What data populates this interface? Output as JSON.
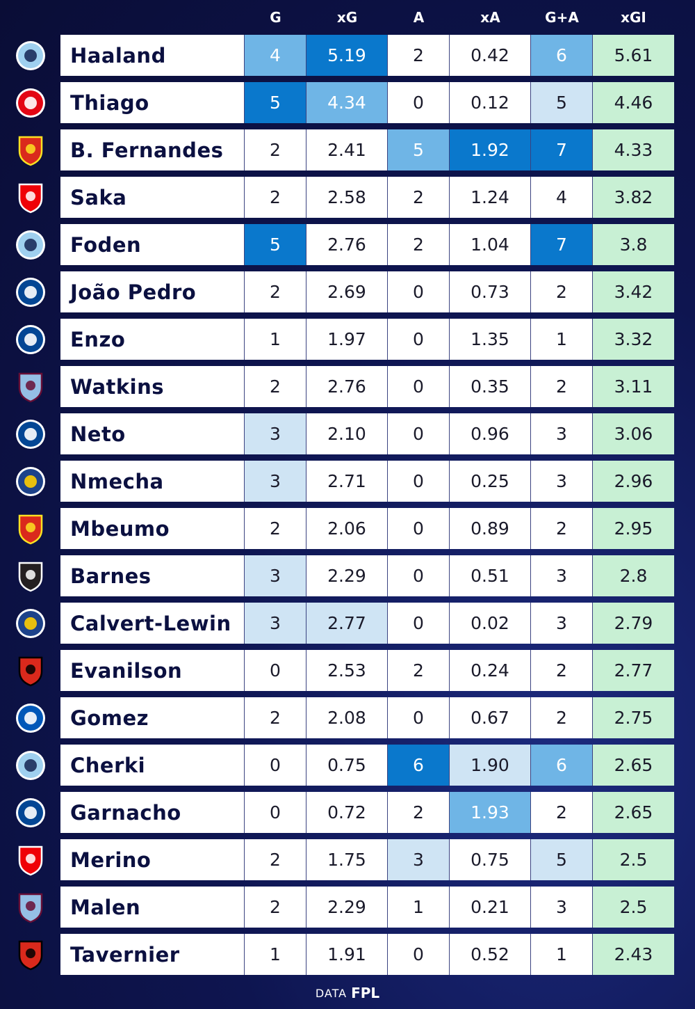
{
  "columns": {
    "g": "G",
    "xg": "xG",
    "a": "A",
    "xa": "xA",
    "ga": "G+A",
    "xgi": "xGI"
  },
  "colors": {
    "white": "#ffffff",
    "light": "#cfe4f4",
    "mid": "#6fb5e6",
    "dark": "#0a78cc",
    "green": "#c8f0d4"
  },
  "players": [
    {
      "name": "Haaland",
      "club_icon": "man-city-crest-icon",
      "g": "4",
      "xg": "5.19",
      "a": "2",
      "xa": "0.42",
      "ga": "6",
      "xgi": "5.61",
      "shade": {
        "g": "mid",
        "xg": "dark",
        "a": "white",
        "xa": "white",
        "ga": "mid"
      }
    },
    {
      "name": "Thiago",
      "club_icon": "brentford-crest-icon",
      "g": "5",
      "xg": "4.34",
      "a": "0",
      "xa": "0.12",
      "ga": "5",
      "xgi": "4.46",
      "shade": {
        "g": "dark",
        "xg": "mid",
        "a": "white",
        "xa": "white",
        "ga": "light"
      }
    },
    {
      "name": "B. Fernandes",
      "club_icon": "man-united-crest-icon",
      "g": "2",
      "xg": "2.41",
      "a": "5",
      "xa": "1.92",
      "ga": "7",
      "xgi": "4.33",
      "shade": {
        "g": "white",
        "xg": "white",
        "a": "mid",
        "xa": "dark",
        "ga": "dark"
      }
    },
    {
      "name": "Saka",
      "club_icon": "arsenal-crest-icon",
      "g": "2",
      "xg": "2.58",
      "a": "2",
      "xa": "1.24",
      "ga": "4",
      "xgi": "3.82",
      "shade": {
        "g": "white",
        "xg": "white",
        "a": "white",
        "xa": "white",
        "ga": "white"
      }
    },
    {
      "name": "Foden",
      "club_icon": "man-city-crest-icon",
      "g": "5",
      "xg": "2.76",
      "a": "2",
      "xa": "1.04",
      "ga": "7",
      "xgi": "3.8",
      "shade": {
        "g": "dark",
        "xg": "white",
        "a": "white",
        "xa": "white",
        "ga": "dark"
      }
    },
    {
      "name": "João Pedro",
      "club_icon": "chelsea-crest-icon",
      "g": "2",
      "xg": "2.69",
      "a": "0",
      "xa": "0.73",
      "ga": "2",
      "xgi": "3.42",
      "shade": {
        "g": "white",
        "xg": "white",
        "a": "white",
        "xa": "white",
        "ga": "white"
      }
    },
    {
      "name": "Enzo",
      "club_icon": "chelsea-crest-icon",
      "g": "1",
      "xg": "1.97",
      "a": "0",
      "xa": "1.35",
      "ga": "1",
      "xgi": "3.32",
      "shade": {
        "g": "white",
        "xg": "white",
        "a": "white",
        "xa": "white",
        "ga": "white"
      }
    },
    {
      "name": "Watkins",
      "club_icon": "aston-villa-crest-icon",
      "g": "2",
      "xg": "2.76",
      "a": "0",
      "xa": "0.35",
      "ga": "2",
      "xgi": "3.11",
      "shade": {
        "g": "white",
        "xg": "white",
        "a": "white",
        "xa": "white",
        "ga": "white"
      }
    },
    {
      "name": "Neto",
      "club_icon": "chelsea-crest-icon",
      "g": "3",
      "xg": "2.10",
      "a": "0",
      "xa": "0.96",
      "ga": "3",
      "xgi": "3.06",
      "shade": {
        "g": "light",
        "xg": "white",
        "a": "white",
        "xa": "white",
        "ga": "white"
      }
    },
    {
      "name": "Nmecha",
      "club_icon": "leeds-crest-icon",
      "g": "3",
      "xg": "2.71",
      "a": "0",
      "xa": "0.25",
      "ga": "3",
      "xgi": "2.96",
      "shade": {
        "g": "light",
        "xg": "white",
        "a": "white",
        "xa": "white",
        "ga": "white"
      }
    },
    {
      "name": "Mbeumo",
      "club_icon": "man-united-crest-icon",
      "g": "2",
      "xg": "2.06",
      "a": "0",
      "xa": "0.89",
      "ga": "2",
      "xgi": "2.95",
      "shade": {
        "g": "white",
        "xg": "white",
        "a": "white",
        "xa": "white",
        "ga": "white"
      }
    },
    {
      "name": "Barnes",
      "club_icon": "newcastle-crest-icon",
      "g": "3",
      "xg": "2.29",
      "a": "0",
      "xa": "0.51",
      "ga": "3",
      "xgi": "2.8",
      "shade": {
        "g": "light",
        "xg": "white",
        "a": "white",
        "xa": "white",
        "ga": "white"
      }
    },
    {
      "name": "Calvert-Lewin",
      "club_icon": "leeds-crest-icon",
      "g": "3",
      "xg": "2.77",
      "a": "0",
      "xa": "0.02",
      "ga": "3",
      "xgi": "2.79",
      "shade": {
        "g": "light",
        "xg": "light",
        "a": "white",
        "xa": "white",
        "ga": "white"
      }
    },
    {
      "name": "Evanilson",
      "club_icon": "bournemouth-crest-icon",
      "g": "0",
      "xg": "2.53",
      "a": "2",
      "xa": "0.24",
      "ga": "2",
      "xgi": "2.77",
      "shade": {
        "g": "white",
        "xg": "white",
        "a": "white",
        "xa": "white",
        "ga": "white"
      }
    },
    {
      "name": "Gomez",
      "club_icon": "brighton-crest-icon",
      "g": "2",
      "xg": "2.08",
      "a": "0",
      "xa": "0.67",
      "ga": "2",
      "xgi": "2.75",
      "shade": {
        "g": "white",
        "xg": "white",
        "a": "white",
        "xa": "white",
        "ga": "white"
      }
    },
    {
      "name": "Cherki",
      "club_icon": "man-city-crest-icon",
      "g": "0",
      "xg": "0.75",
      "a": "6",
      "xa": "1.90",
      "ga": "6",
      "xgi": "2.65",
      "shade": {
        "g": "white",
        "xg": "white",
        "a": "dark",
        "xa": "light",
        "ga": "mid"
      }
    },
    {
      "name": "Garnacho",
      "club_icon": "chelsea-crest-icon",
      "g": "0",
      "xg": "0.72",
      "a": "2",
      "xa": "1.93",
      "ga": "2",
      "xgi": "2.65",
      "shade": {
        "g": "white",
        "xg": "white",
        "a": "white",
        "xa": "mid",
        "ga": "white"
      }
    },
    {
      "name": "Merino",
      "club_icon": "arsenal-crest-icon",
      "g": "2",
      "xg": "1.75",
      "a": "3",
      "xa": "0.75",
      "ga": "5",
      "xgi": "2.5",
      "shade": {
        "g": "white",
        "xg": "white",
        "a": "light",
        "xa": "white",
        "ga": "light"
      }
    },
    {
      "name": "Malen",
      "club_icon": "aston-villa-crest-icon",
      "g": "2",
      "xg": "2.29",
      "a": "1",
      "xa": "0.21",
      "ga": "3",
      "xgi": "2.5",
      "shade": {
        "g": "white",
        "xg": "white",
        "a": "white",
        "xa": "white",
        "ga": "white"
      }
    },
    {
      "name": "Tavernier",
      "club_icon": "bournemouth-crest-icon",
      "g": "1",
      "xg": "1.91",
      "a": "0",
      "xa": "0.52",
      "ga": "1",
      "xgi": "2.43",
      "shade": {
        "g": "white",
        "xg": "white",
        "a": "white",
        "xa": "white",
        "ga": "white"
      }
    }
  ],
  "footer": {
    "label": "DATA",
    "source": "FPL"
  }
}
